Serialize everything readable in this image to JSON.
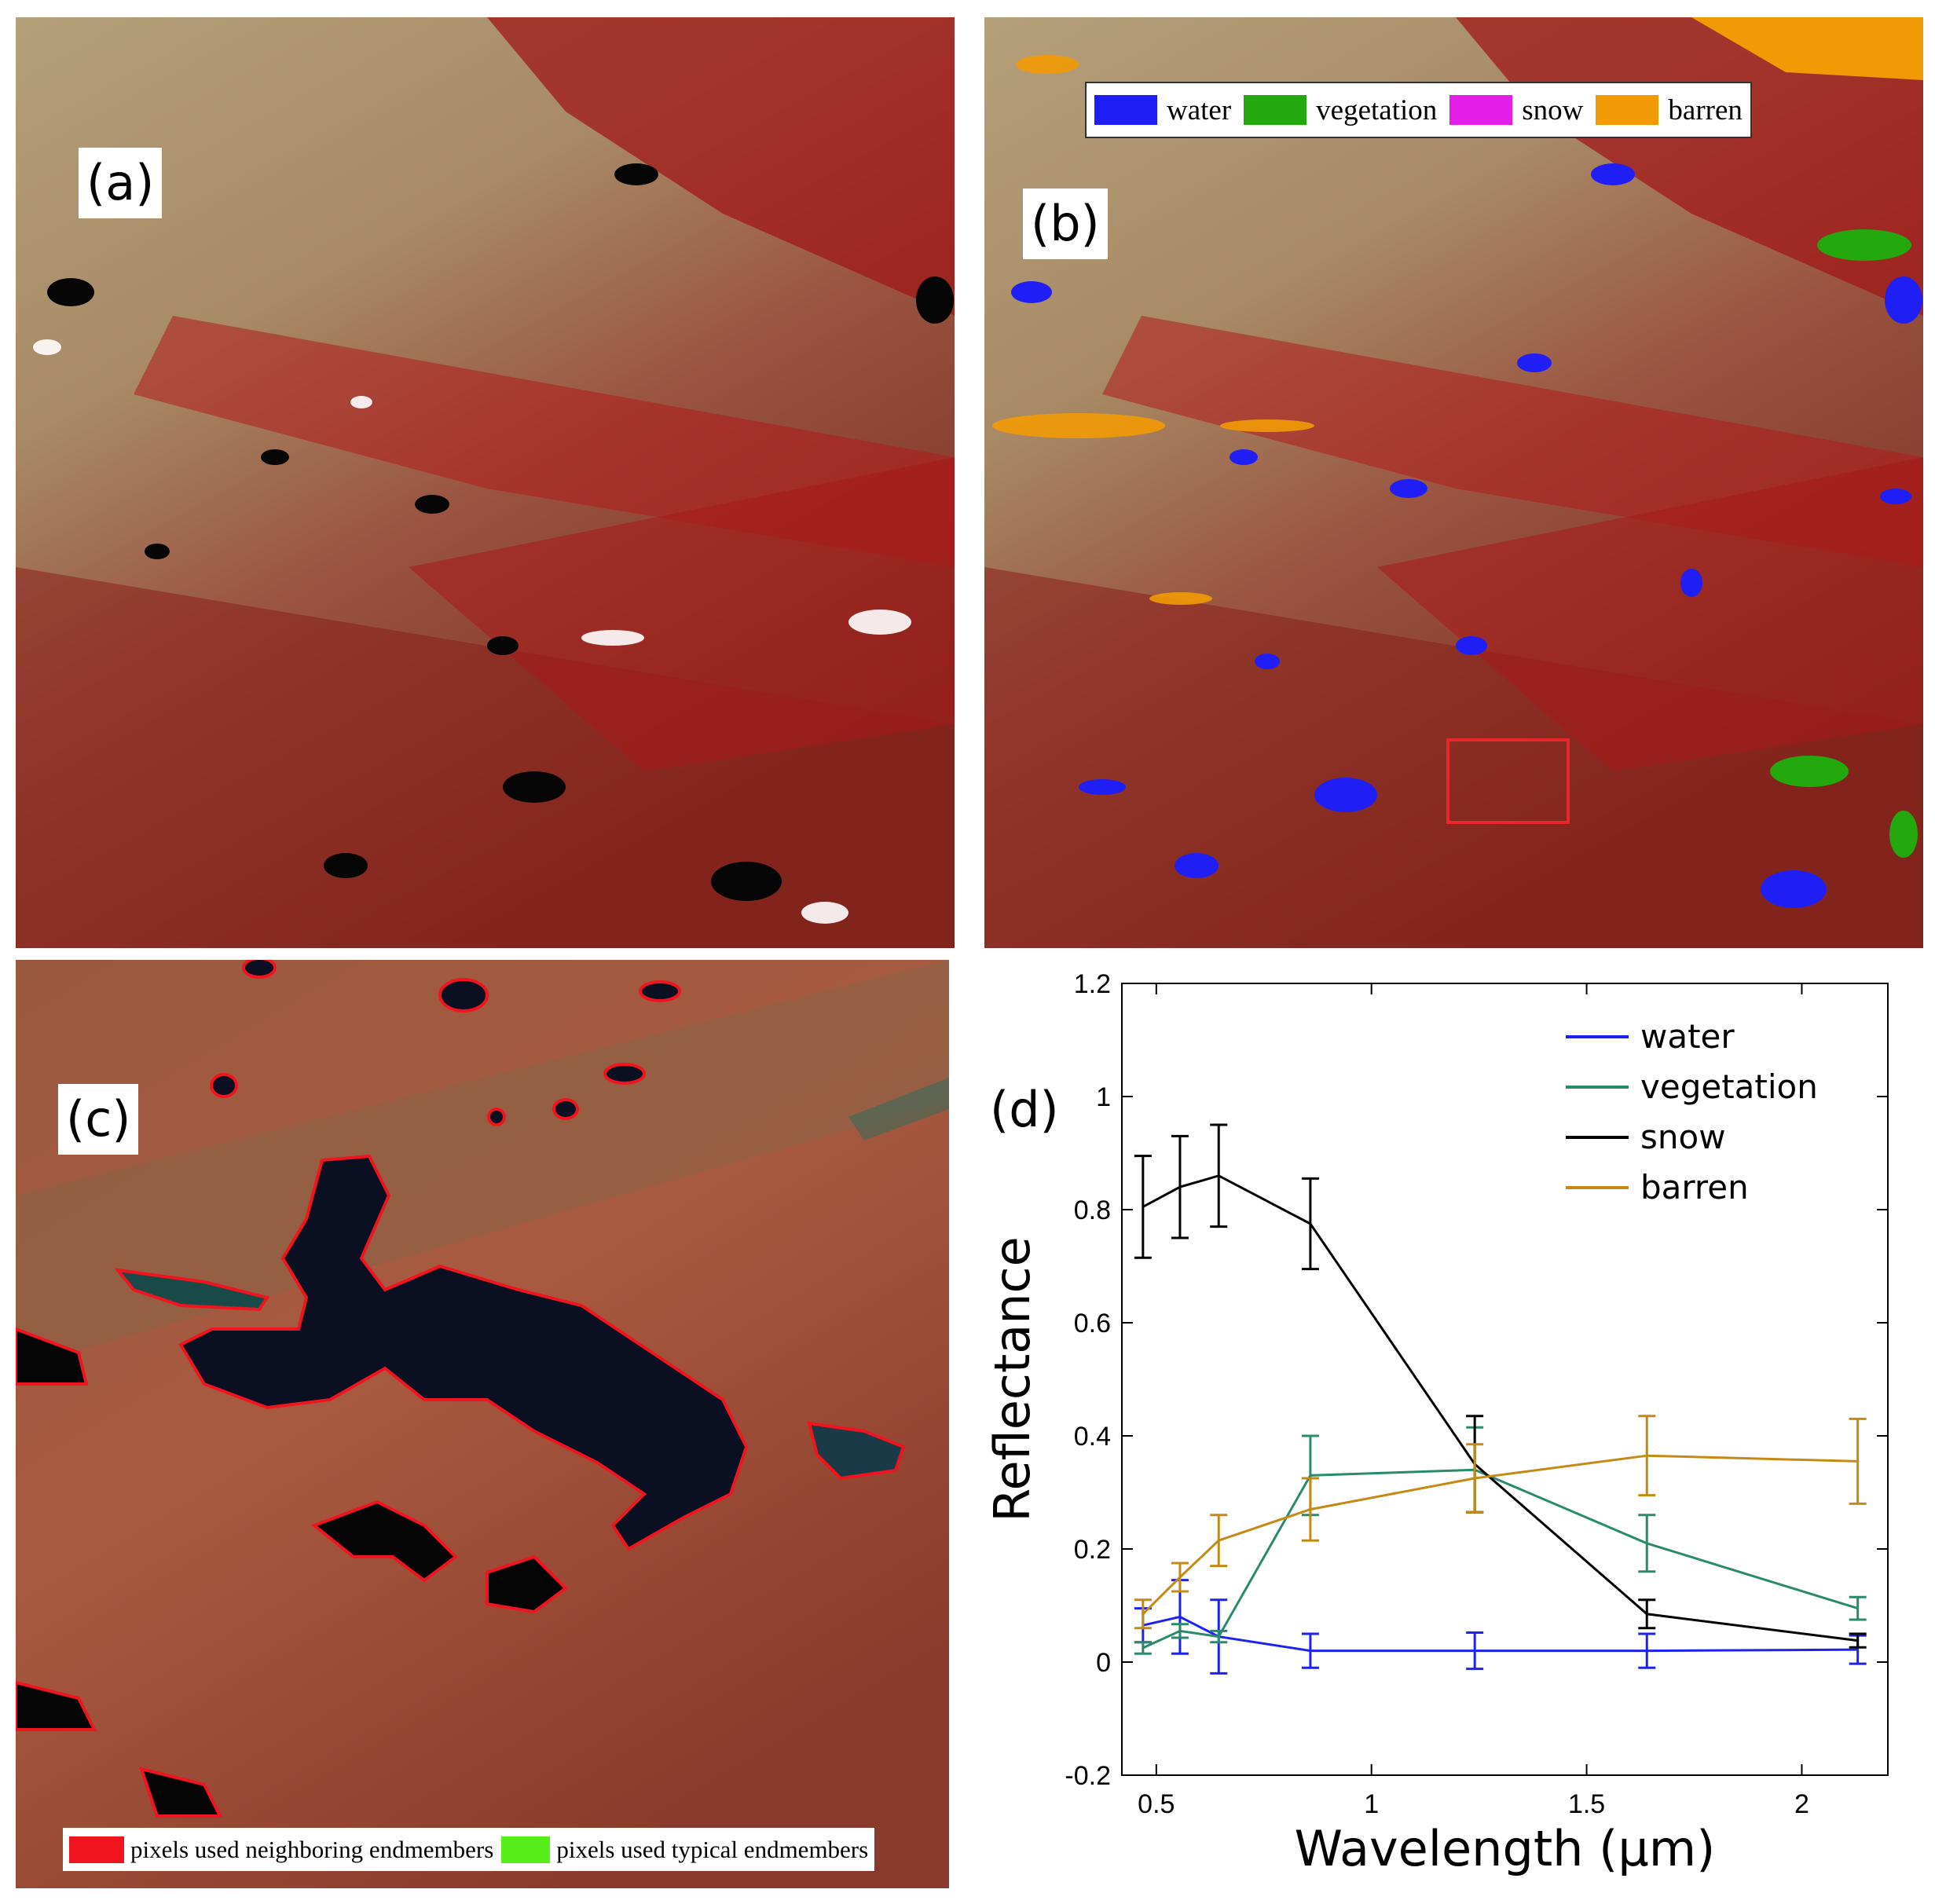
{
  "panels": {
    "a": {
      "label": "(a)"
    },
    "b": {
      "label": "(b)",
      "legend": [
        {
          "name": "water",
          "color": "#1f1ff5"
        },
        {
          "name": "vegetation",
          "color": "#23a80d"
        },
        {
          "name": "snow",
          "color": "#e21ee8"
        },
        {
          "name": "barren",
          "color": "#f29a06"
        }
      ],
      "highlight_box_color": "#e8272b"
    },
    "c": {
      "label": "(c)",
      "legend": [
        {
          "name": "pixels used neighboring endmembers",
          "color": "#f0141e"
        },
        {
          "name": "pixels used typical endmembers",
          "color": "#56ef1c"
        }
      ]
    },
    "d": {
      "label": "(d)"
    }
  },
  "chart_data": {
    "type": "line",
    "title": "",
    "xlabel": "Wavelength (μm)",
    "ylabel": "Reflectance",
    "xlim": [
      0.42,
      2.2
    ],
    "ylim": [
      -0.2,
      1.2
    ],
    "xticks": [
      0.5,
      1,
      1.5,
      2
    ],
    "xtick_labels": [
      "0.5",
      "1",
      "1.5",
      "2"
    ],
    "yticks": [
      -0.2,
      0,
      0.2,
      0.4,
      0.6,
      0.8,
      1,
      1.2
    ],
    "ytick_labels": [
      "-0.2",
      "0",
      "0.2",
      "0.4",
      "0.6",
      "0.8",
      "1",
      "1.2"
    ],
    "grid": false,
    "legend_position": "top-right",
    "x": [
      0.469,
      0.555,
      0.645,
      0.858,
      1.24,
      1.64,
      2.13
    ],
    "series": [
      {
        "name": "water",
        "color": "#1e22f0",
        "values": [
          0.065,
          0.08,
          0.045,
          0.02,
          0.02,
          0.02,
          0.022
        ],
        "errors": [
          0.03,
          0.065,
          0.065,
          0.03,
          0.032,
          0.03,
          0.025
        ]
      },
      {
        "name": "vegetation",
        "color": "#2a8a6c",
        "values": [
          0.025,
          0.055,
          0.045,
          0.33,
          0.34,
          0.21,
          0.095
        ],
        "errors": [
          0.01,
          0.012,
          0.01,
          0.07,
          0.075,
          0.05,
          0.02
        ]
      },
      {
        "name": "snow",
        "color": "#000000",
        "values": [
          0.805,
          0.84,
          0.86,
          0.775,
          0.35,
          0.085,
          0.038
        ],
        "errors": [
          0.09,
          0.09,
          0.09,
          0.08,
          0.085,
          0.025,
          0.012
        ]
      },
      {
        "name": "barren",
        "color": "#c48a16",
        "values": [
          0.085,
          0.15,
          0.215,
          0.27,
          0.325,
          0.365,
          0.355
        ],
        "errors": [
          0.025,
          0.025,
          0.045,
          0.055,
          0.06,
          0.07,
          0.075
        ]
      }
    ]
  }
}
